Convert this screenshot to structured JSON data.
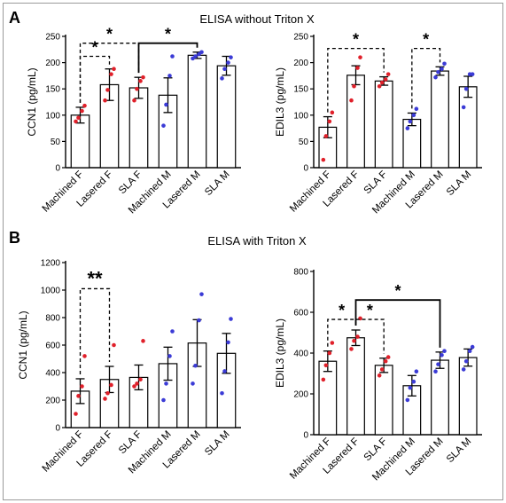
{
  "panels": [
    {
      "letter": "A",
      "title": "ELISA without Triton X"
    },
    {
      "letter": "B",
      "title": "ELISA with Triton X"
    }
  ],
  "colors": {
    "female": "#e0202a",
    "male": "#3b3bd6",
    "axis": "#000000"
  },
  "chart_data": [
    {
      "type": "bar",
      "panel": "A",
      "ylabel": "CCN1 (pg/mL)",
      "ylim": [
        0,
        250
      ],
      "yticks": [
        0,
        50,
        100,
        150,
        200,
        250
      ],
      "categories": [
        "Machined F",
        "Lasered F",
        "SLA F",
        "Machined M",
        "Lasered M",
        "SLA M"
      ],
      "values": [
        100,
        158,
        152,
        138,
        214,
        194
      ],
      "errors": [
        15,
        30,
        20,
        33,
        6,
        18
      ],
      "points": [
        [
          88,
          95,
          108,
          118
        ],
        [
          128,
          148,
          178,
          188
        ],
        [
          128,
          150,
          165,
          172
        ],
        [
          80,
          120,
          175,
          212
        ],
        [
          208,
          212,
          216,
          220
        ],
        [
          170,
          188,
          200,
          210
        ]
      ],
      "point_groups": [
        "F",
        "F",
        "F",
        "M",
        "M",
        "M"
      ],
      "significance": [
        {
          "from": 0,
          "to": 2,
          "label": "*",
          "style": "dashed",
          "level": 237
        },
        {
          "from": 0,
          "to": 1,
          "label": "*",
          "style": "dashed",
          "level": 212
        },
        {
          "from": 2,
          "to": 4,
          "label": "*",
          "style": "solid",
          "level": 237
        }
      ]
    },
    {
      "type": "bar",
      "panel": "A",
      "ylabel": "EDIL3 (pg/mL)",
      "ylim": [
        0,
        250
      ],
      "yticks": [
        0,
        50,
        100,
        150,
        200,
        250
      ],
      "categories": [
        "Machined F",
        "Lasered F",
        "SLA F",
        "Machined M",
        "Lasered M",
        "SLA M"
      ],
      "values": [
        77,
        176,
        165,
        92,
        184,
        154
      ],
      "errors": [
        20,
        18,
        8,
        12,
        8,
        20
      ],
      "points": [
        [
          15,
          60,
          88,
          105
        ],
        [
          128,
          155,
          190,
          210
        ],
        [
          155,
          162,
          168,
          178
        ],
        [
          75,
          88,
          100,
          112
        ],
        [
          172,
          182,
          188,
          198
        ],
        [
          115,
          150,
          178,
          178
        ]
      ],
      "point_groups": [
        "F",
        "F",
        "F",
        "M",
        "M",
        "M"
      ],
      "significance": [
        {
          "from": 0,
          "to": 2,
          "label": "*",
          "style": "dashed",
          "level": 227
        },
        {
          "from": 3,
          "to": 4,
          "label": "*",
          "style": "dashed",
          "level": 227
        }
      ]
    },
    {
      "type": "bar",
      "panel": "B",
      "ylabel": "CCN1 (pg/mL)",
      "ylim": [
        0,
        1200
      ],
      "yticks": [
        0,
        200,
        400,
        600,
        800,
        1000,
        1200
      ],
      "categories": [
        "Machined F",
        "Lasered F",
        "SLA F",
        "Machined M",
        "Lasered M",
        "SLA M"
      ],
      "values": [
        265,
        350,
        365,
        465,
        615,
        540
      ],
      "errors": [
        90,
        95,
        90,
        120,
        170,
        145
      ],
      "points": [
        [
          100,
          230,
          300,
          520
        ],
        [
          210,
          250,
          310,
          600
        ],
        [
          300,
          320,
          350,
          630
        ],
        [
          200,
          320,
          520,
          700
        ],
        [
          320,
          450,
          780,
          970
        ],
        [
          250,
          410,
          620,
          790
        ]
      ],
      "point_groups": [
        "F",
        "F",
        "F",
        "M",
        "M",
        "M"
      ],
      "significance": [
        {
          "from": 0,
          "to": 1,
          "label": "**",
          "style": "dashed",
          "level": 1010
        }
      ]
    },
    {
      "type": "bar",
      "panel": "B",
      "ylabel": "EDIL3 (pg/mL)",
      "ylim": [
        0,
        800
      ],
      "yticks": [
        0,
        200,
        400,
        600,
        800
      ],
      "categories": [
        "Machined F",
        "Lasered F",
        "SLA F",
        "Machined M",
        "Lasered M",
        "SLA M"
      ],
      "values": [
        360,
        475,
        340,
        240,
        365,
        378
      ],
      "errors": [
        50,
        38,
        35,
        50,
        40,
        42
      ],
      "points": [
        [
          270,
          340,
          400,
          450
        ],
        [
          420,
          460,
          480,
          570
        ],
        [
          290,
          320,
          360,
          380
        ],
        [
          170,
          230,
          260,
          310
        ],
        [
          310,
          345,
          390,
          410
        ],
        [
          320,
          360,
          410,
          430
        ]
      ],
      "point_groups": [
        "F",
        "F",
        "F",
        "M",
        "M",
        "M"
      ],
      "significance": [
        {
          "from": 0,
          "to": 1,
          "label": "*",
          "style": "dashed",
          "level": 565
        },
        {
          "from": 1,
          "to": 2,
          "label": "*",
          "style": "dashed",
          "level": 565
        },
        {
          "from": 1,
          "to": 4,
          "label": "*",
          "style": "solid",
          "level": 660
        }
      ]
    }
  ]
}
